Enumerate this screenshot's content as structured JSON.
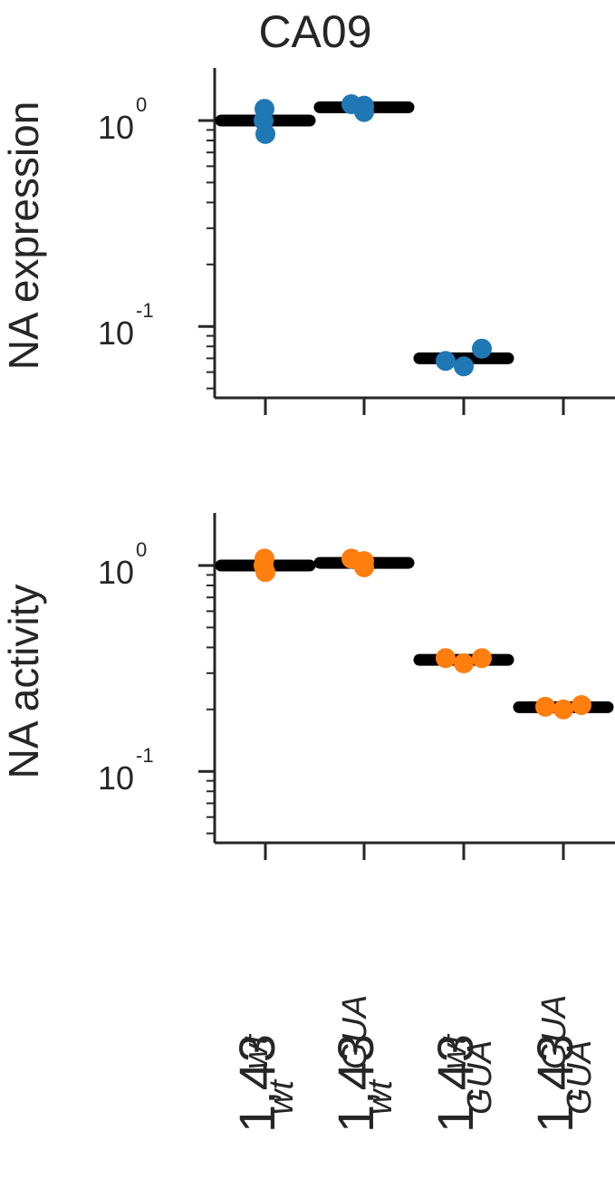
{
  "chart_data": [
    {
      "type": "scatter",
      "title": "CA09",
      "ylabel": "NA expression",
      "yscale": "log",
      "ylim": [
        0.045,
        1.8
      ],
      "yticks": [
        {
          "base": "10",
          "exp": "0",
          "value": 1
        },
        {
          "base": "10",
          "exp": "-1",
          "value": 0.1
        }
      ],
      "categories": [
        "wt/wt",
        "wt/GUA",
        "GUA/wt",
        "GUA/GUA"
      ],
      "series": [
        {
          "color": "#1f77b4",
          "points": [
            {
              "x": "wt/wt",
              "y": 1.14
            },
            {
              "x": "wt/wt",
              "y": 1.0
            },
            {
              "x": "wt/wt",
              "y": 0.86
            },
            {
              "x": "wt/GUA",
              "y": 1.2
            },
            {
              "x": "wt/GUA",
              "y": 1.18
            },
            {
              "x": "wt/GUA",
              "y": 1.1
            },
            {
              "x": "GUA/wt",
              "y": 0.068
            },
            {
              "x": "GUA/wt",
              "y": 0.064
            },
            {
              "x": "GUA/wt",
              "y": 0.078
            }
          ],
          "means": [
            {
              "x": "wt/wt",
              "y": 1.0
            },
            {
              "x": "wt/GUA",
              "y": 1.16
            },
            {
              "x": "GUA/wt",
              "y": 0.07
            }
          ]
        }
      ]
    },
    {
      "type": "scatter",
      "ylabel": "NA activity",
      "yscale": "log",
      "ylim": [
        0.045,
        1.8
      ],
      "yticks": [
        {
          "base": "10",
          "exp": "0",
          "value": 1
        },
        {
          "base": "10",
          "exp": "-1",
          "value": 0.1
        }
      ],
      "categories": [
        "wt/wt",
        "wt/GUA",
        "GUA/wt",
        "GUA/GUA"
      ],
      "series": [
        {
          "color": "#ff7f0e",
          "points": [
            {
              "x": "wt/wt",
              "y": 1.08
            },
            {
              "x": "wt/wt",
              "y": 1.0
            },
            {
              "x": "wt/wt",
              "y": 0.93
            },
            {
              "x": "wt/GUA",
              "y": 1.08
            },
            {
              "x": "wt/GUA",
              "y": 1.05
            },
            {
              "x": "wt/GUA",
              "y": 0.98
            },
            {
              "x": "GUA/wt",
              "y": 0.355
            },
            {
              "x": "GUA/wt",
              "y": 0.335
            },
            {
              "x": "GUA/wt",
              "y": 0.355
            },
            {
              "x": "GUA/GUA",
              "y": 0.206
            },
            {
              "x": "GUA/GUA",
              "y": 0.2
            },
            {
              "x": "GUA/GUA",
              "y": 0.21
            }
          ],
          "means": [
            {
              "x": "wt/wt",
              "y": 1.0
            },
            {
              "x": "wt/GUA",
              "y": 1.03
            },
            {
              "x": "GUA/wt",
              "y": 0.348
            },
            {
              "x": "GUA/GUA",
              "y": 0.205
            }
          ]
        }
      ]
    }
  ],
  "x_tick_labels": [
    {
      "main": "1,43",
      "sub": "wt",
      "sup": "wt"
    },
    {
      "main": "1,43",
      "sub": "wt",
      "sup": "GUA"
    },
    {
      "main": "1,43",
      "sub": "GUA",
      "sup": "wt"
    },
    {
      "main": "1,43",
      "sub": "GUA",
      "sup": "GUA"
    }
  ]
}
